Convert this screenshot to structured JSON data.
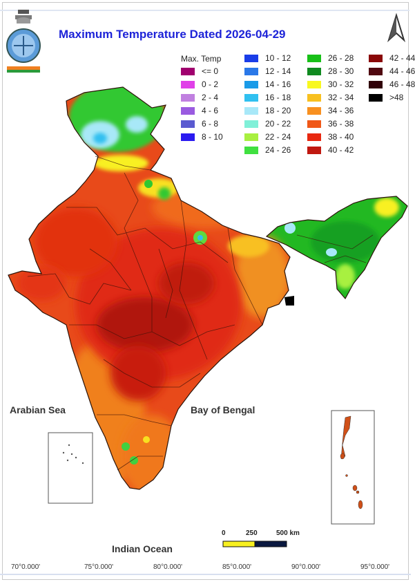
{
  "title": "Maximum Temperature Dated 2026-04-29",
  "legend": {
    "heading": "Max. Temp",
    "items": [
      {
        "label": "<= 0",
        "color": "#a0006e"
      },
      {
        "label": "0 - 2",
        "color": "#e040e8"
      },
      {
        "label": "2 - 4",
        "color": "#c080e0"
      },
      {
        "label": "4 - 6",
        "color": "#9a5be0"
      },
      {
        "label": "6 - 8",
        "color": "#5a5ad0"
      },
      {
        "label": "8 - 10",
        "color": "#2a1af0"
      },
      {
        "label": "10 - 12",
        "color": "#1a3de8"
      },
      {
        "label": "12 - 14",
        "color": "#2a78e8"
      },
      {
        "label": "14 - 16",
        "color": "#1a9be8"
      },
      {
        "label": "16 - 18",
        "color": "#30c0f0"
      },
      {
        "label": "18 - 20",
        "color": "#a8e8f8"
      },
      {
        "label": "20 - 22",
        "color": "#80f0d8"
      },
      {
        "label": "22 - 24",
        "color": "#a8f040"
      },
      {
        "label": "24 - 26",
        "color": "#40e040"
      },
      {
        "label": "26 - 28",
        "color": "#18c018"
      },
      {
        "label": "28 - 30",
        "color": "#108a20"
      },
      {
        "label": "30 - 32",
        "color": "#f8f820"
      },
      {
        "label": "32 - 34",
        "color": "#f8c020"
      },
      {
        "label": "34 - 36",
        "color": "#f89020"
      },
      {
        "label": "36 - 38",
        "color": "#f05818"
      },
      {
        "label": "38 - 40",
        "color": "#e82810"
      },
      {
        "label": "40 - 42",
        "color": "#c01810"
      },
      {
        "label": "42 - 44",
        "color": "#8a0808"
      },
      {
        "label": "44 - 46",
        "color": "#500810"
      },
      {
        "label": "46 - 48",
        "color": "#300008"
      },
      {
        "label": ">48",
        "color": "#000000"
      }
    ]
  },
  "labels": {
    "arabian_sea": "Arabian Sea",
    "bay_of_bengal": "Bay of Bengal",
    "indian_ocean": "Indian Ocean"
  },
  "scale_bar": {
    "ticks": [
      "0",
      "250",
      "500 km"
    ]
  },
  "longitudes": [
    "70°0.000'",
    "75°0.000'",
    "80°0.000'",
    "85°0.000'",
    "90°0.000'",
    "95°0.000'"
  ]
}
